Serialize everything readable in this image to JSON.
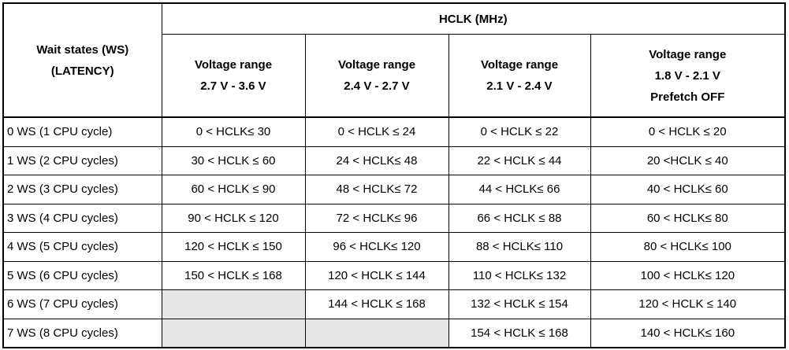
{
  "table": {
    "corner": [
      "Wait states (WS)",
      "(LATENCY)"
    ],
    "group_header": "HCLK (MHz)",
    "columns": [
      [
        "Voltage range",
        "2.7 V - 3.6 V"
      ],
      [
        "Voltage range",
        "2.4 V - 2.7 V"
      ],
      [
        "Voltage range",
        "2.1 V - 2.4 V"
      ],
      [
        "Voltage range",
        "1.8 V - 2.1 V",
        "Prefetch OFF"
      ]
    ],
    "rows": [
      [
        "0 WS (1 CPU cycle)",
        "0 < HCLK≤ 30",
        "0 < HCLK ≤ 24",
        "0 < HCLK ≤ 22",
        "0 < HCLK ≤ 20"
      ],
      [
        "1 WS (2 CPU cycles)",
        "30 < HCLK ≤ 60",
        "24 < HCLK≤ 48",
        "22 < HCLK ≤ 44",
        "20 <HCLK ≤ 40"
      ],
      [
        "2 WS (3 CPU cycles)",
        "60 < HCLK ≤ 90",
        "48 < HCLK≤ 72",
        "44 < HCLK≤ 66",
        "40 < HCLK≤ 60"
      ],
      [
        "3 WS (4 CPU cycles)",
        "90 < HCLK ≤ 120",
        "72 < HCLK≤ 96",
        "66 < HCLK ≤ 88",
        "60 < HCLK≤ 80"
      ],
      [
        "4 WS (5 CPU cycles)",
        "120 < HCLK ≤ 150",
        "96 < HCLK≤ 120",
        "88 < HCLK≤ 110",
        "80 < HCLK≤ 100"
      ],
      [
        "5 WS (6 CPU cycles)",
        "150 < HCLK ≤ 168",
        "120 < HCLK ≤ 144",
        "110 < HCLK≤ 132",
        "100 < HCLK≤ 120"
      ],
      [
        "6 WS (7 CPU cycles)",
        null,
        "144 < HCLK ≤ 168",
        "132 < HCLK ≤ 154",
        "120 < HCLK ≤ 140"
      ],
      [
        "7 WS (8 CPU cycles)",
        null,
        null,
        "154 < HCLK ≤ 168",
        "140 < HCLK≤ 160"
      ]
    ]
  }
}
